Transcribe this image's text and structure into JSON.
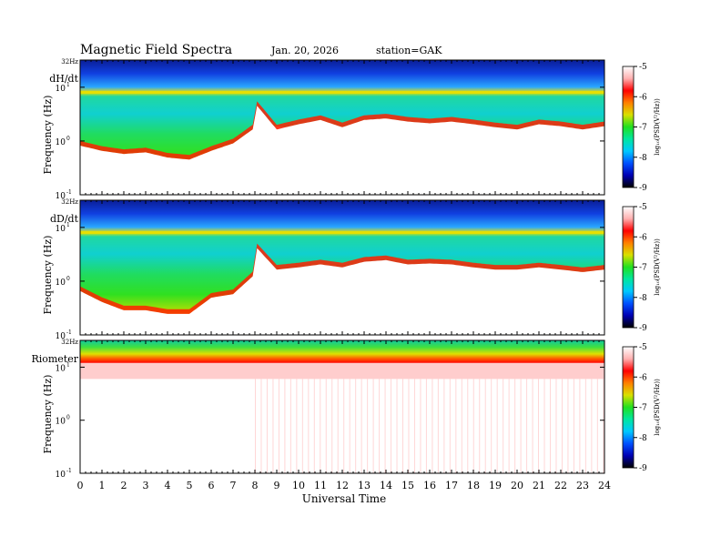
{
  "header": {
    "title": "Magnetic  Field  Spectra",
    "date": "Jan. 20, 2026",
    "station": "station=GAK"
  },
  "chart_data": {
    "type": "heatmap",
    "xlabel": "Universal Time",
    "x_ticks": [
      "0",
      "1",
      "2",
      "3",
      "4",
      "5",
      "6",
      "7",
      "8",
      "9",
      "10",
      "11",
      "12",
      "13",
      "14",
      "15",
      "16",
      "17",
      "18",
      "19",
      "20",
      "21",
      "22",
      "23",
      "24"
    ],
    "xlim": [
      0,
      24
    ],
    "ylim_hz": [
      0.1,
      32
    ],
    "y_scale": "log",
    "colorbar": {
      "label": "log₁₀(PSD(V²/Hz))",
      "ticks": [
        "-5",
        "-6",
        "-7",
        "-8",
        "-9"
      ],
      "range": [
        -9,
        -5
      ],
      "colors": [
        "#000000",
        "#0000b4",
        "#0050ff",
        "#00c8ff",
        "#00e6a0",
        "#20e020",
        "#d8e000",
        "#ff8000",
        "#ff0000",
        "#ffb0b0",
        "#ffffff"
      ]
    },
    "panels": [
      {
        "name": "dH/dt",
        "ylabel": "Frequency  (Hz)",
        "top_label": "32Hz",
        "y_ticks": [
          {
            "label": "10",
            "exp": "1",
            "hz": 10
          },
          {
            "label": "10",
            "exp": "0",
            "hz": 1
          },
          {
            "label": "10",
            "exp": "-1",
            "hz": 0.1
          }
        ],
        "red_edge_hz": [
          [
            0,
            1.0
          ],
          [
            1,
            0.8
          ],
          [
            2,
            0.7
          ],
          [
            3,
            0.75
          ],
          [
            4,
            0.6
          ],
          [
            5,
            0.55
          ],
          [
            6,
            0.8
          ],
          [
            7,
            1.1
          ],
          [
            7.9,
            2.0
          ],
          [
            8.1,
            5.5
          ],
          [
            9,
            2.0
          ],
          [
            10,
            2.5
          ],
          [
            11,
            3.0
          ],
          [
            12,
            2.2
          ],
          [
            13,
            3.0
          ],
          [
            14,
            3.2
          ],
          [
            15,
            2.8
          ],
          [
            16,
            2.6
          ],
          [
            17,
            2.8
          ],
          [
            18,
            2.5
          ],
          [
            19,
            2.2
          ],
          [
            20,
            2.0
          ],
          [
            21,
            2.5
          ],
          [
            22,
            2.3
          ],
          [
            23,
            2.0
          ],
          [
            24,
            2.3
          ]
        ],
        "tail_hz": [
          [
            0,
            0.4
          ],
          [
            2,
            0.2
          ],
          [
            4,
            0.12
          ],
          [
            5,
            0.1
          ],
          [
            6,
            0.15
          ],
          [
            7,
            0.3
          ],
          [
            7.9,
            0.5
          ],
          [
            8.1,
            2.0
          ],
          [
            12,
            1.5
          ],
          [
            24,
            1.2
          ]
        ]
      },
      {
        "name": "dD/dt",
        "ylabel": "Frequency  (Hz)",
        "top_label": "32Hz",
        "y_ticks": [
          {
            "label": "10",
            "exp": "1",
            "hz": 10
          },
          {
            "label": "10",
            "exp": "0",
            "hz": 1
          },
          {
            "label": "10",
            "exp": "-1",
            "hz": 0.1
          }
        ],
        "red_edge_hz": [
          [
            0,
            0.8
          ],
          [
            1,
            0.5
          ],
          [
            2,
            0.35
          ],
          [
            3,
            0.35
          ],
          [
            4,
            0.3
          ],
          [
            5,
            0.3
          ],
          [
            6,
            0.6
          ],
          [
            7,
            0.7
          ],
          [
            7.9,
            1.5
          ],
          [
            8.1,
            5.0
          ],
          [
            9,
            2.0
          ],
          [
            10,
            2.2
          ],
          [
            11,
            2.5
          ],
          [
            12,
            2.2
          ],
          [
            13,
            2.8
          ],
          [
            14,
            3.0
          ],
          [
            15,
            2.5
          ],
          [
            16,
            2.6
          ],
          [
            17,
            2.5
          ],
          [
            18,
            2.2
          ],
          [
            19,
            2.0
          ],
          [
            20,
            2.0
          ],
          [
            21,
            2.2
          ],
          [
            22,
            2.0
          ],
          [
            23,
            1.8
          ],
          [
            24,
            2.0
          ]
        ],
        "tail_hz": [
          [
            0,
            0.25
          ],
          [
            2,
            0.15
          ],
          [
            3,
            0.1
          ],
          [
            5,
            0.1
          ],
          [
            6,
            0.12
          ],
          [
            7,
            0.25
          ],
          [
            7.9,
            0.4
          ],
          [
            8.1,
            1.5
          ],
          [
            12,
            1.2
          ],
          [
            24,
            1.0
          ]
        ]
      },
      {
        "name": "Riometer",
        "ylabel": "Frequency  (Hz)",
        "top_label": "32Hz",
        "y_ticks": [
          {
            "label": "10",
            "exp": "1",
            "hz": 10
          },
          {
            "label": "10",
            "exp": "0",
            "hz": 1
          },
          {
            "label": "10",
            "exp": "-1",
            "hz": 0.1
          }
        ],
        "red_edge_hz": [
          [
            0,
            12
          ],
          [
            24,
            12
          ]
        ],
        "tail_hz": [
          [
            0,
            10
          ],
          [
            24,
            10
          ]
        ]
      }
    ]
  }
}
